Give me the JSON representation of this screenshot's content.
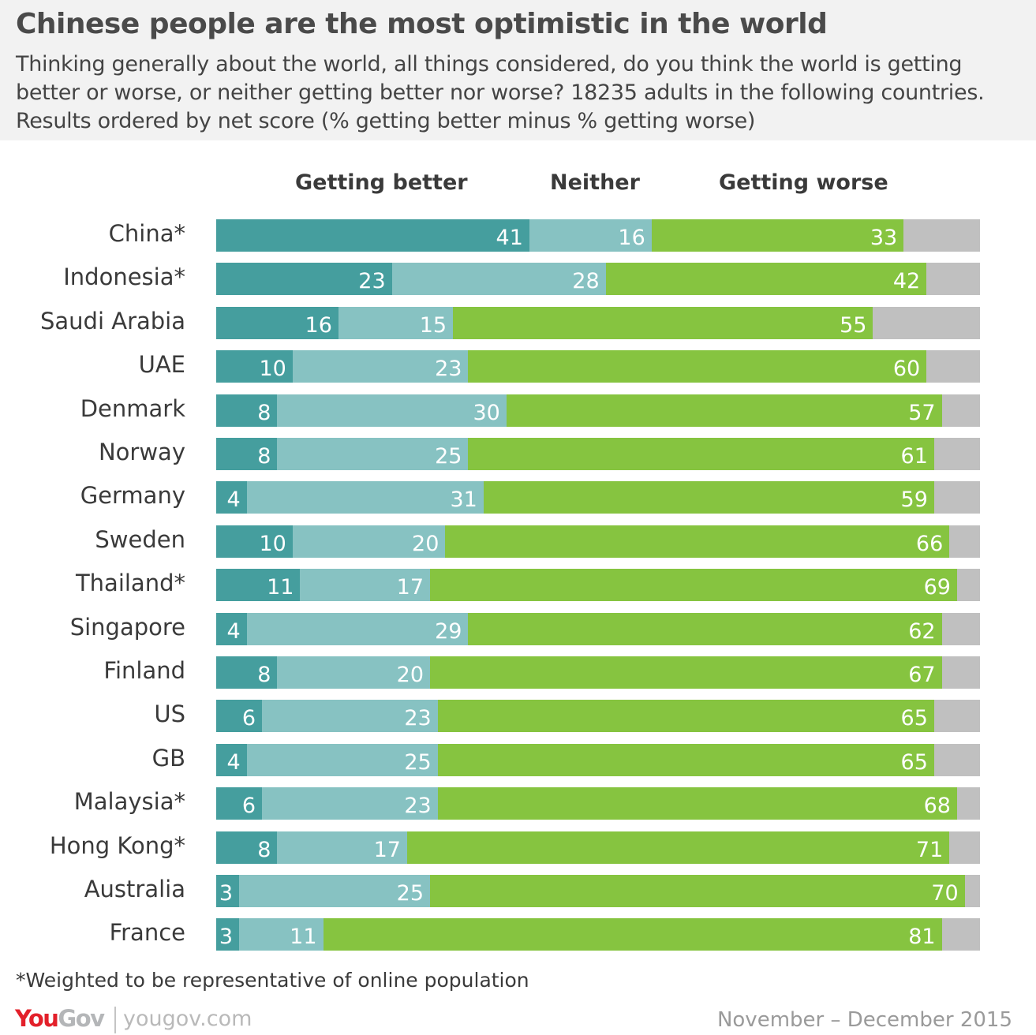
{
  "title": "Chinese people are the most optimistic in the world",
  "subtitle": "Thinking generally about the world, all things considered, do you think the world is getting better or worse, or neither getting better nor worse? 18235 adults in the following countries. Results ordered by net score (% getting better minus % getting worse)",
  "footnote": "*Weighted to be representative of online population",
  "brand": {
    "logo_you": "You",
    "logo_gov": "Gov",
    "site": "yougov.com"
  },
  "date": "November – December 2015",
  "colors": {
    "better": "#459e9e",
    "neither": "#87c2c2",
    "worse": "#86c440",
    "remainder": "#c0c0c0",
    "logo_red": "#e3202a",
    "logo_grey": "#b4b6b8"
  },
  "chart_data": {
    "type": "bar",
    "orientation": "horizontal",
    "stacked": true,
    "xlim": [
      0,
      100
    ],
    "categories": [
      "China*",
      "Indonesia*",
      "Saudi Arabia",
      "UAE",
      "Denmark",
      "Norway",
      "Germany",
      "Sweden",
      "Thailand*",
      "Singapore",
      "Finland",
      "US",
      "GB",
      "Malaysia*",
      "Hong Kong*",
      "Australia",
      "France"
    ],
    "series": [
      {
        "name": "Getting better",
        "values": [
          41,
          23,
          16,
          10,
          8,
          8,
          4,
          10,
          11,
          4,
          8,
          6,
          4,
          6,
          8,
          3,
          3
        ]
      },
      {
        "name": "Neither",
        "values": [
          16,
          28,
          15,
          23,
          30,
          25,
          31,
          20,
          17,
          29,
          20,
          23,
          25,
          23,
          17,
          25,
          11
        ]
      },
      {
        "name": "Getting worse",
        "values": [
          33,
          42,
          55,
          60,
          57,
          61,
          59,
          66,
          69,
          62,
          67,
          65,
          65,
          68,
          71,
          70,
          81
        ]
      }
    ],
    "legend": "top"
  }
}
